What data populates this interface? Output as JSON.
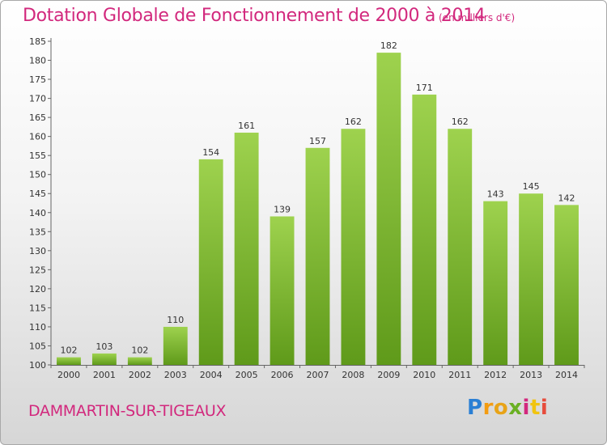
{
  "title": "Dotation Globale de Fonctionnement de 2000 à 2014",
  "unit": "(en milliers d'€)",
  "commune": "DAMMARTIN-SUR-TIGEAUX",
  "logo": {
    "letters": [
      "P",
      "r",
      "o",
      "x",
      "i",
      "t",
      "i"
    ],
    "colors": [
      "#2a7fd4",
      "#f39c12",
      "#e8a317",
      "#6ab023",
      "#d2287d",
      "#f1c40f",
      "#e74c3c"
    ]
  },
  "colors": {
    "bar_top": "#9ed24e",
    "bar_bottom": "#5f9a1a",
    "title": "#d2287d"
  },
  "chart_data": {
    "type": "bar",
    "categories": [
      "2000",
      "2001",
      "2002",
      "2003",
      "2004",
      "2005",
      "2006",
      "2007",
      "2008",
      "2009",
      "2010",
      "2011",
      "2012",
      "2013",
      "2014"
    ],
    "values": [
      102,
      103,
      102,
      110,
      154,
      161,
      139,
      157,
      162,
      182,
      171,
      162,
      143,
      145,
      142
    ],
    "data_labels": [
      "102",
      "103",
      "102",
      "110",
      "154",
      "161",
      "139",
      "157",
      "162",
      "182",
      "171",
      "162",
      "143",
      "145",
      "142"
    ],
    "y_ticks": [
      "100",
      "105",
      "110",
      "115",
      "120",
      "125",
      "130",
      "135",
      "140",
      "145",
      "150",
      "155",
      "160",
      "165",
      "170",
      "175",
      "180",
      "185"
    ],
    "ylim": [
      100,
      185
    ],
    "title": "Dotation Globale de Fonctionnement de 2000 à 2014",
    "xlabel": "",
    "ylabel": "",
    "grid": false,
    "legend": "none"
  }
}
